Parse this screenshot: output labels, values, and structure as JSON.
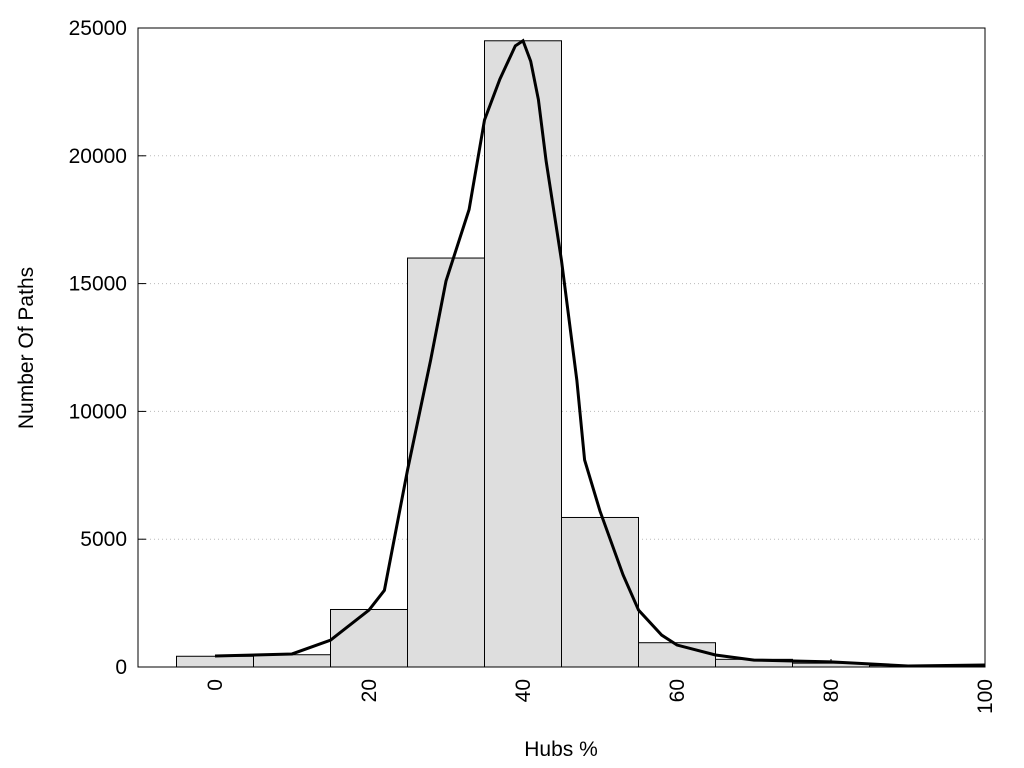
{
  "chart_data": {
    "type": "histogram",
    "xlabel": "Hubs %",
    "ylabel": "Number Of Paths",
    "bins": [
      -5,
      5,
      15,
      25,
      35,
      45,
      55,
      65,
      75,
      85,
      95
    ],
    "counts": [
      420,
      480,
      2250,
      16000,
      24500,
      5850,
      950,
      300,
      150,
      50
    ],
    "color": "#dedede",
    "curve": {
      "color": "#000000",
      "x": [
        0,
        10,
        15,
        20,
        22,
        25,
        28,
        30,
        33,
        35,
        37,
        39,
        40,
        41,
        42,
        43,
        45,
        47,
        48,
        50,
        53,
        55,
        58,
        60,
        65,
        70,
        80,
        90,
        100
      ],
      "values": [
        430,
        510,
        1050,
        2230,
        3000,
        7700,
        12000,
        15100,
        17900,
        21400,
        23000,
        24300,
        24500,
        23700,
        22200,
        19800,
        15900,
        11200,
        8100,
        6100,
        3600,
        2230,
        1250,
        860,
        470,
        270,
        200,
        40,
        80
      ]
    },
    "xlim": [
      -10,
      100
    ],
    "xticks": [
      0,
      20,
      40,
      60,
      80,
      100
    ],
    "ylim": [
      0,
      25000
    ],
    "yticks": [
      0,
      5000,
      10000,
      15000,
      20000,
      25000
    ],
    "grid": true
  }
}
